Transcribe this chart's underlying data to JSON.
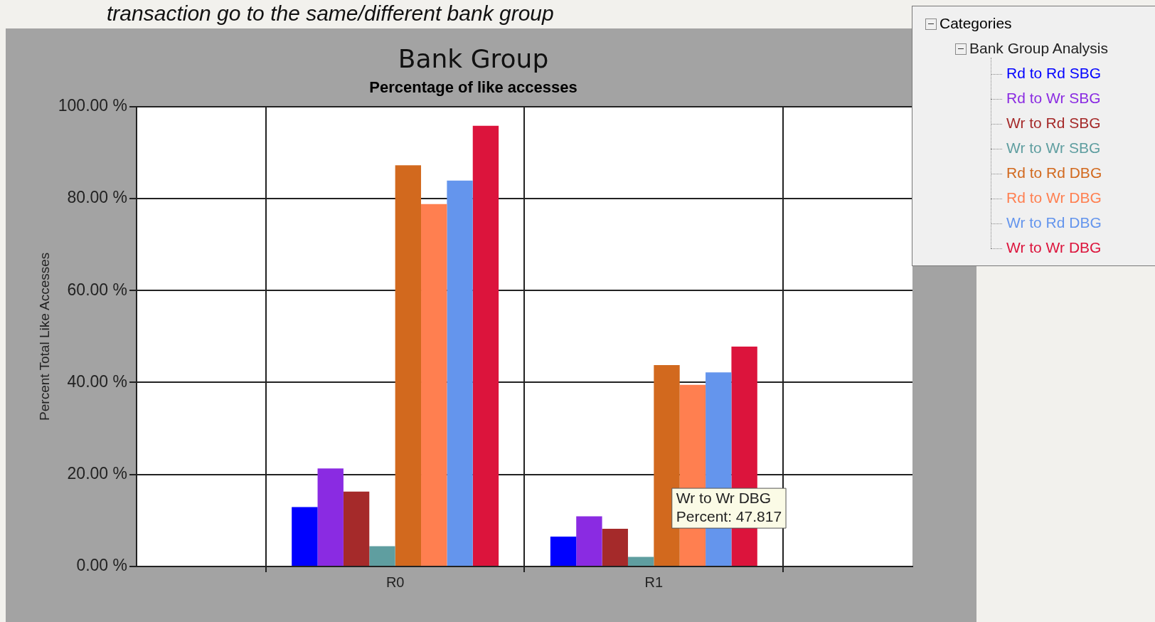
{
  "chart_data": {
    "type": "bar",
    "title": "Bank Group",
    "subtitle": "Percentage of like accesses",
    "ylabel": "Percent Total Like Accesses",
    "legend_title": "Bank Group Analysis",
    "annotations": [
      "transaction go to the same/different bank group",
      "Categories",
      "Wr to Wr DBG\nPercent: 47.817"
    ],
    "categories": [
      null,
      "R0",
      "R1",
      null
    ],
    "series": [
      {
        "name": "Rd to Rd SBG",
        "color": "#0000ff",
        "values": [
          null,
          12.9,
          6.5,
          null
        ]
      },
      {
        "name": "Rd to Wr SBG",
        "color": "#8a2be2",
        "values": [
          null,
          21.3,
          10.9,
          null
        ]
      },
      {
        "name": "Wr to Rd SBG",
        "color": "#a52a2a",
        "values": [
          null,
          16.3,
          8.2,
          null
        ]
      },
      {
        "name": "Wr to Wr SBG",
        "color": "#5f9ea0",
        "values": [
          null,
          4.4,
          2.1,
          null
        ]
      },
      {
        "name": "Rd to Rd DBG",
        "color": "#d2691e",
        "values": [
          null,
          87.2,
          43.8,
          null
        ]
      },
      {
        "name": "Rd to Wr DBG",
        "color": "#ff7f50",
        "values": [
          null,
          78.8,
          39.5,
          null
        ]
      },
      {
        "name": "Wr to Rd DBG",
        "color": "#6495ed",
        "values": [
          null,
          83.9,
          42.2,
          null
        ]
      },
      {
        "name": "Wr to Wr DBG",
        "color": "#dc143c",
        "values": [
          null,
          95.8,
          47.817,
          null
        ]
      }
    ],
    "ylim": [
      0,
      100
    ],
    "yticks": [
      {
        "value": 0,
        "label": "0.00 %"
      },
      {
        "value": 20,
        "label": "20.00 %"
      },
      {
        "value": 40,
        "label": "40.00 %"
      },
      {
        "value": 60,
        "label": "60.00 %"
      },
      {
        "value": 80,
        "label": "80.00 %"
      },
      {
        "value": 100,
        "label": "100.00 %"
      }
    ],
    "grid": true,
    "legend": "right"
  }
}
